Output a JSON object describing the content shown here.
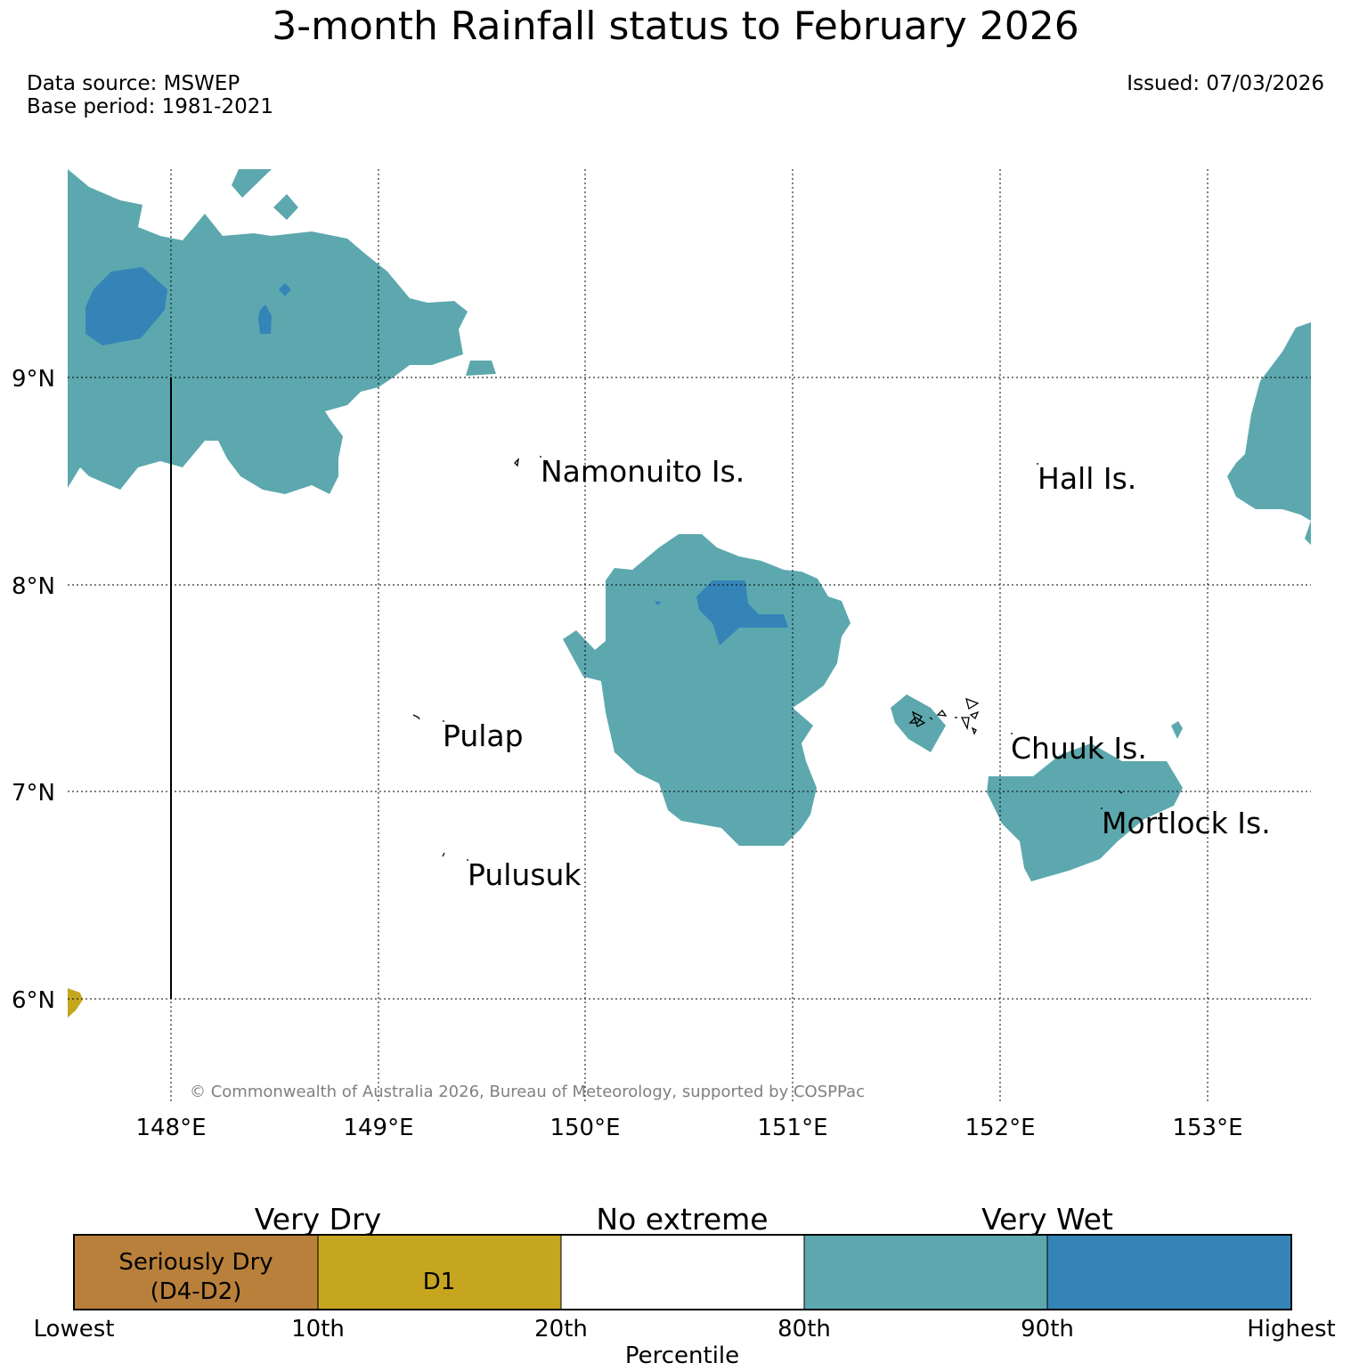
{
  "title": "3-month Rainfall status to February 2026",
  "source": {
    "data_source": "Data source: MSWEP",
    "base_period": "Base period: 1981-2021",
    "issued": "Issued: 07/03/2026"
  },
  "map": {
    "lat_ticks": [
      "9°N",
      "8°N",
      "7°N",
      "6°N"
    ],
    "lon_ticks": [
      "148°E",
      "149°E",
      "150°E",
      "151°E",
      "152°E",
      "153°E"
    ],
    "places": [
      "Namonuito Is.",
      "Hall Is.",
      "Pulap",
      "Chuuk Is.",
      "Mortlock Is.",
      "Pulusuk"
    ],
    "copyright": "© Commonwealth of Australia 2026, Bureau of Meteorology, supported by COSPPac",
    "colors": {
      "very_wet": "#5ca8ae",
      "highest": "#3584b8",
      "d1": "#c5a61e",
      "seriously_dry": "#b8803a",
      "no_extreme": "#ffffff"
    }
  },
  "legend": {
    "groups": [
      "Very Dry",
      "No extreme",
      "Very Wet"
    ],
    "boxes": [
      {
        "line1": "Seriously Dry",
        "line2": "(D4-D2)",
        "color": "#b8803a"
      },
      {
        "line1": "D1",
        "line2": "",
        "color": "#c5a61e"
      },
      {
        "line1": "",
        "line2": "",
        "color": "#ffffff"
      },
      {
        "line1": "",
        "line2": "",
        "color": "#5ca8ae"
      },
      {
        "line1": "",
        "line2": "",
        "color": "#3584b8"
      }
    ],
    "ticks": [
      "Lowest",
      "10th",
      "20th",
      "80th",
      "90th",
      "Highest"
    ],
    "axis_label": "Percentile"
  }
}
